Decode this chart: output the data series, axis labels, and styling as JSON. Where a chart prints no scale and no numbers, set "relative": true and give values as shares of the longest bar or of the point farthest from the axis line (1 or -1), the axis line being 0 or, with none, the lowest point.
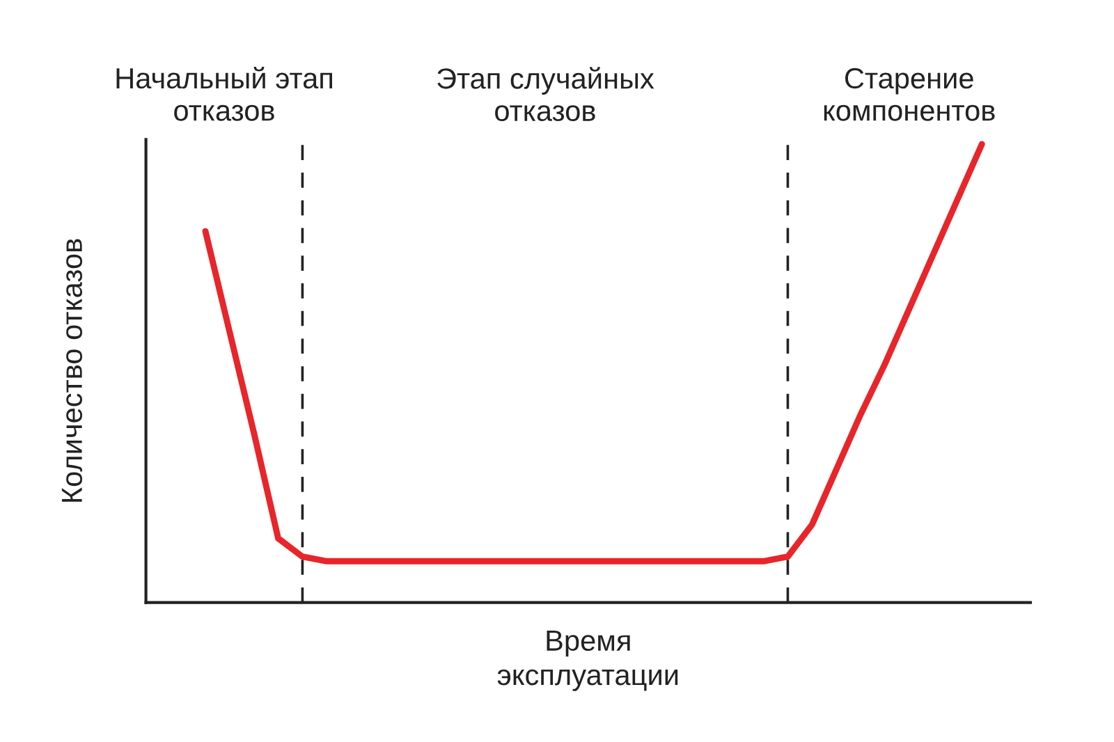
{
  "chart_data": {
    "type": "line",
    "relative": true,
    "xlabel": "Время\nэксплуатации",
    "ylabel": "Количество отказов",
    "annotations": [
      "Начальный этап\nотказов",
      "Этап случайных\nотказов",
      "Старение\nкомпонентов"
    ],
    "categories": [
      null,
      null,
      null,
      null,
      null,
      null,
      null,
      null,
      null,
      null,
      null,
      null,
      null,
      null,
      null,
      null,
      null,
      null,
      null,
      null,
      null,
      null,
      null,
      null,
      null,
      null,
      null,
      null,
      null,
      null,
      null,
      null,
      null
    ],
    "series": [
      {
        "color": "#e8252a",
        "values": [
          0.81,
          0.59,
          0.37,
          0.14,
          0.1,
          0.09,
          0.09,
          0.09,
          0.09,
          0.09,
          0.09,
          0.09,
          0.09,
          0.09,
          0.09,
          0.09,
          0.09,
          0.09,
          0.09,
          0.09,
          0.09,
          0.09,
          0.09,
          0.09,
          0.1,
          0.17,
          0.29,
          0.41,
          0.52,
          0.64,
          0.76,
          0.88,
          1.0
        ]
      }
    ],
    "legend": false,
    "marker": "none",
    "line_style": "solid"
  }
}
